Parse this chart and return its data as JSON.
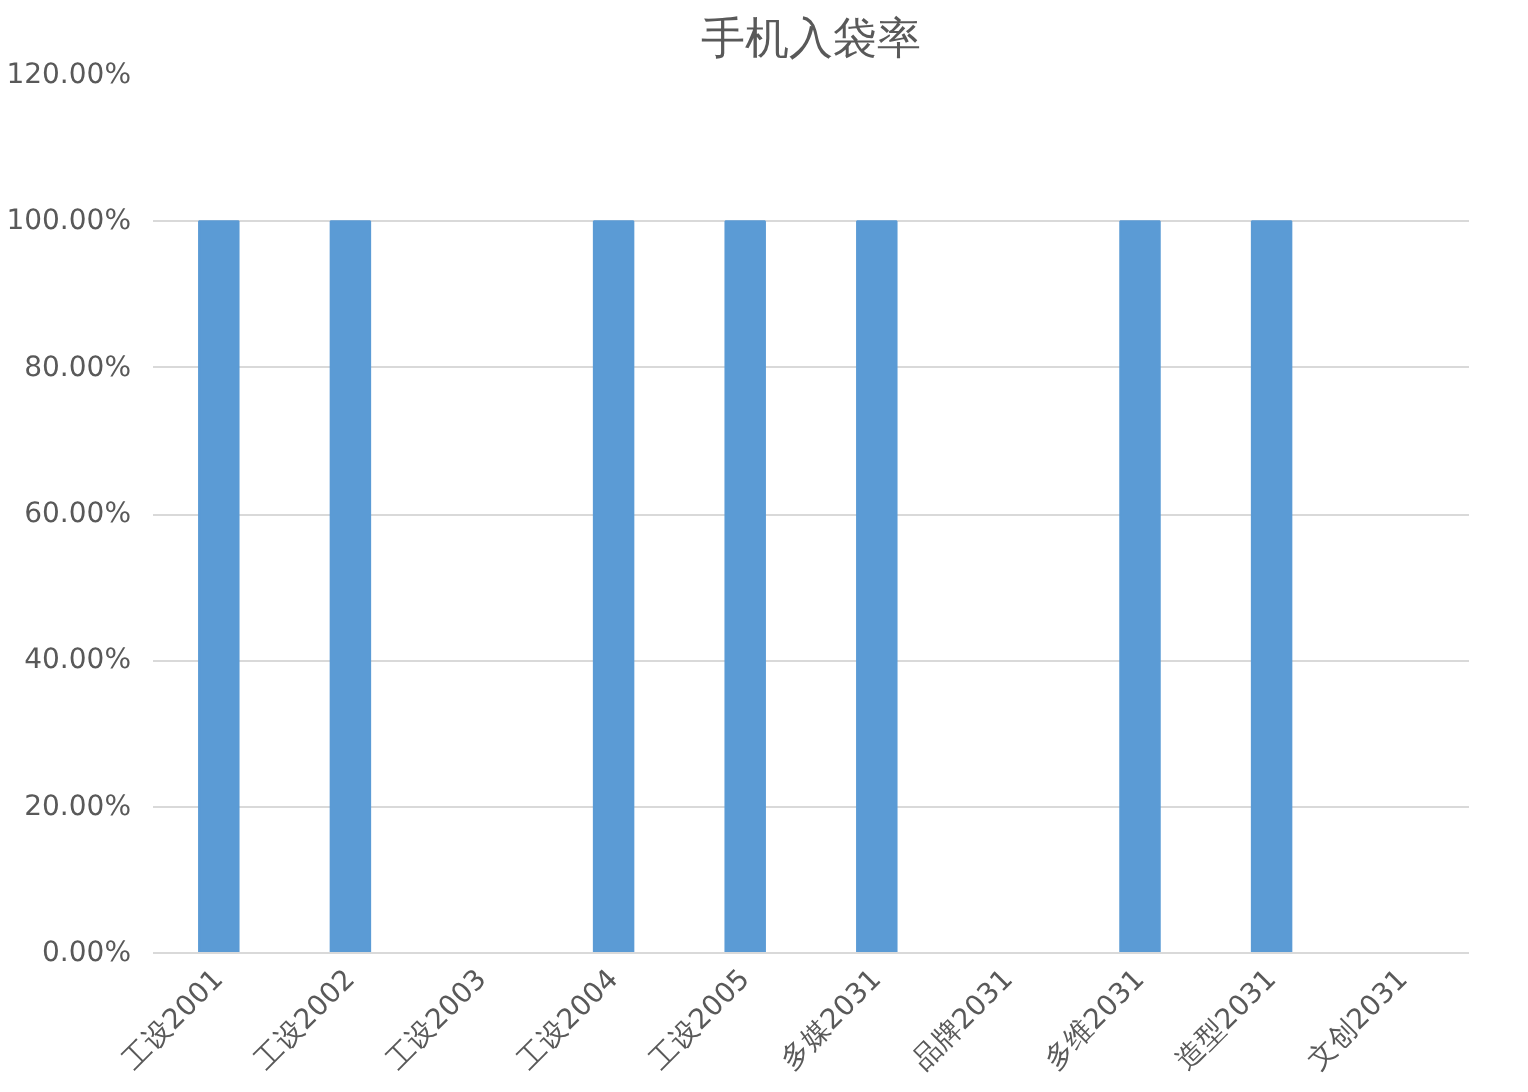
{
  "chart_data": {
    "type": "bar",
    "title": "手机入袋率",
    "categories": [
      "工设2001",
      "工设2002",
      "工设2003",
      "工设2004",
      "工设2005",
      "多媒2031",
      "品牌2031",
      "多维2031",
      "造型2031",
      "文创2031"
    ],
    "values": [
      100,
      100,
      0,
      100,
      100,
      100,
      0,
      100,
      100,
      0
    ],
    "color": "#5b9bd5",
    "ylim": [
      0,
      120
    ],
    "yticks": [
      {
        "value": 0,
        "label": "0.00%"
      },
      {
        "value": 20,
        "label": "20.00%"
      },
      {
        "value": 40,
        "label": "40.00%"
      },
      {
        "value": 60,
        "label": "60.00%"
      },
      {
        "value": 80,
        "label": "80.00%"
      },
      {
        "value": 100,
        "label": "100.00%"
      },
      {
        "value": 120,
        "label": "120.00%"
      }
    ],
    "grid": "y"
  }
}
